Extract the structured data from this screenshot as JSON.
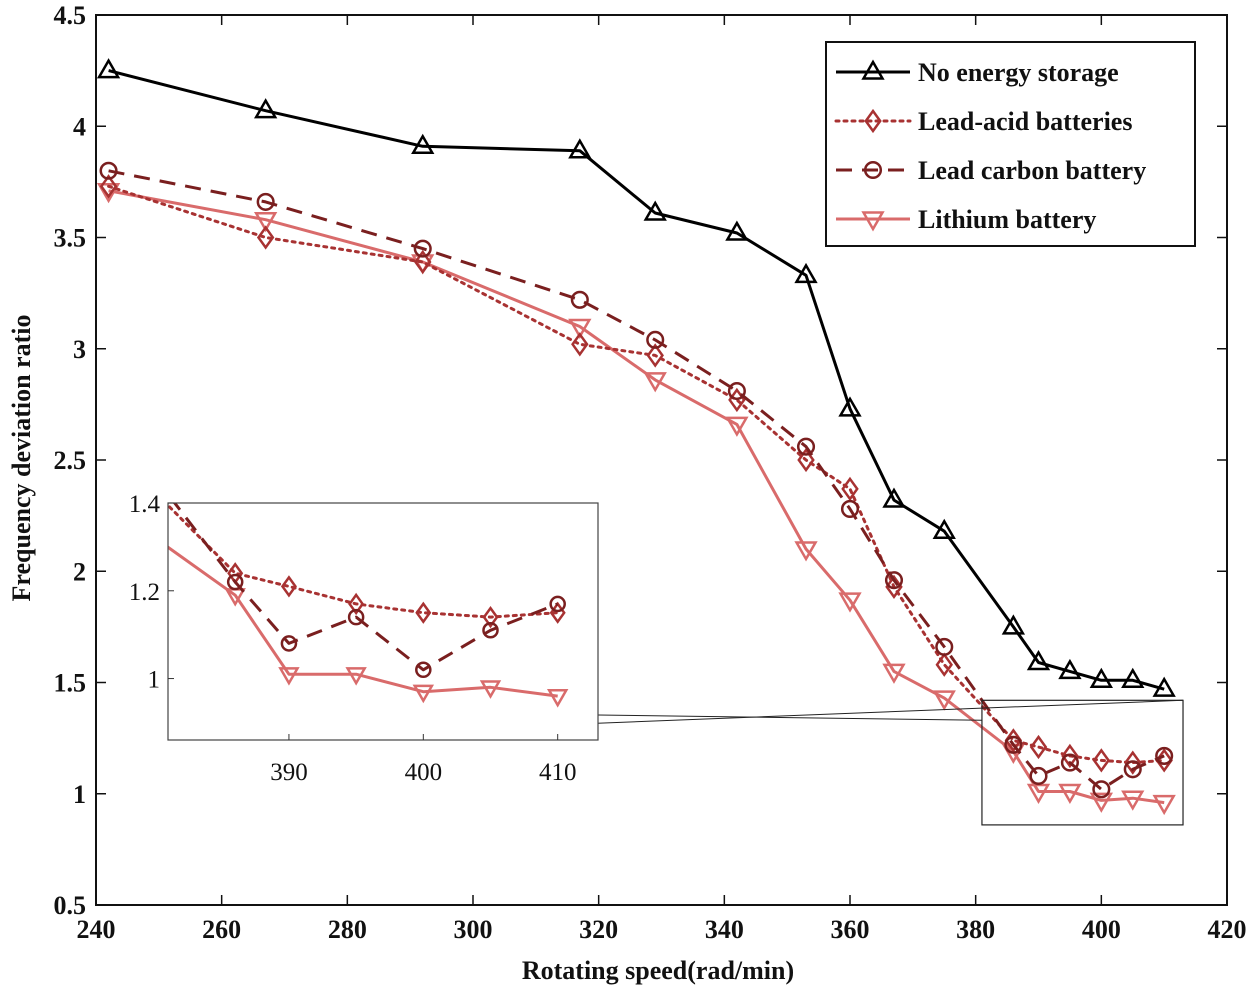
{
  "chart_data": {
    "type": "line",
    "title": "",
    "xlabel": "Rotating speed(rad/min)",
    "ylabel": "Frequency deviation ratio",
    "xlim": [
      240,
      420
    ],
    "ylim": [
      0.5,
      4.5
    ],
    "xticks": [
      240,
      260,
      280,
      300,
      320,
      340,
      360,
      380,
      400,
      420
    ],
    "yticks": [
      0.5,
      1,
      1.5,
      2,
      2.5,
      3,
      3.5,
      4,
      4.5
    ],
    "xtick_labels": [
      "240",
      "260",
      "280",
      "300",
      "320",
      "340",
      "360",
      "380",
      "400",
      "420"
    ],
    "ytick_labels": [
      "0.5",
      "1",
      "1.5",
      "2",
      "2.5",
      "3",
      "3.5",
      "4",
      "4.5"
    ],
    "grid": false,
    "legend_position": "top-right",
    "series": [
      {
        "name": "No energy storage",
        "color": "#000000",
        "marker": "triangle-up",
        "line": "solid",
        "x": [
          242,
          267,
          292,
          317,
          329,
          342,
          353,
          360,
          367,
          375,
          386,
          390,
          395,
          400,
          405,
          410
        ],
        "y": [
          4.25,
          4.07,
          3.91,
          3.89,
          3.61,
          3.52,
          3.33,
          2.73,
          2.32,
          2.18,
          1.75,
          1.59,
          1.55,
          1.51,
          1.51,
          1.47
        ]
      },
      {
        "name": "Lead-acid batteries",
        "color": "#a83232",
        "marker": "diamond",
        "line": "dotted",
        "x": [
          242,
          267,
          292,
          317,
          329,
          342,
          353,
          360,
          367,
          375,
          386,
          390,
          395,
          400,
          405,
          410
        ],
        "y": [
          3.73,
          3.5,
          3.39,
          3.02,
          2.97,
          2.77,
          2.5,
          2.37,
          1.93,
          1.58,
          1.24,
          1.21,
          1.17,
          1.15,
          1.14,
          1.15
        ]
      },
      {
        "name": "Lead carbon battery",
        "color": "#7a1f1f",
        "marker": "circle",
        "line": "dashed",
        "x": [
          242,
          267,
          292,
          317,
          329,
          342,
          353,
          360,
          367,
          375,
          386,
          390,
          395,
          400,
          405,
          410
        ],
        "y": [
          3.8,
          3.66,
          3.45,
          3.22,
          3.04,
          2.81,
          2.56,
          2.28,
          1.96,
          1.66,
          1.22,
          1.08,
          1.14,
          1.02,
          1.11,
          1.17
        ]
      },
      {
        "name": "Lithium battery",
        "color": "#d96b6b",
        "marker": "triangle-down",
        "line": "solid",
        "x": [
          242,
          267,
          292,
          317,
          329,
          342,
          353,
          360,
          367,
          375,
          386,
          390,
          395,
          400,
          405,
          410
        ],
        "y": [
          3.71,
          3.58,
          3.39,
          3.1,
          2.86,
          2.66,
          2.1,
          1.87,
          1.55,
          1.43,
          1.19,
          1.01,
          1.01,
          0.97,
          0.98,
          0.96
        ]
      }
    ],
    "inset": {
      "xlim": [
        381,
        413
      ],
      "ylim": [
        0.86,
        1.4
      ],
      "xticks": [
        390,
        400,
        410
      ],
      "yticks": [
        1,
        1.2,
        1.4
      ],
      "xtick_labels": [
        "390",
        "400",
        "410"
      ],
      "ytick_labels": [
        "1",
        "1.2",
        "1.4"
      ],
      "zoom_region": {
        "xlim": [
          381,
          413
        ],
        "ylim": [
          0.86,
          1.42
        ]
      }
    }
  }
}
